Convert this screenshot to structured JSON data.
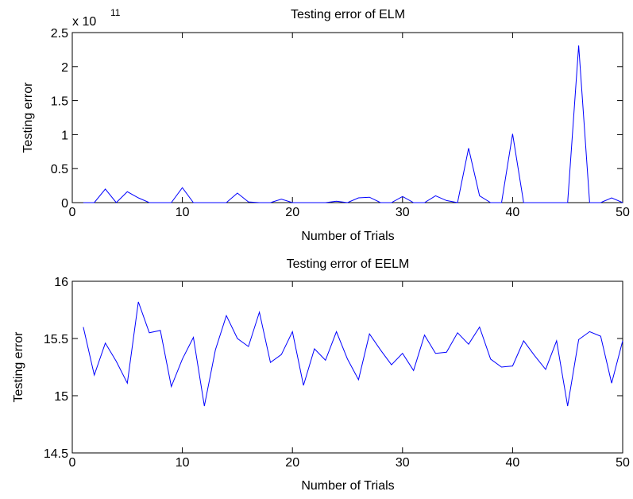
{
  "chart_data": [
    {
      "type": "line",
      "title": "Testing error of ELM",
      "xlabel": "Number of Trials",
      "ylabel": "Testing error",
      "y_exponent_base": "x 10",
      "y_exponent_power": "11",
      "xlim": [
        0,
        50
      ],
      "ylim": [
        0,
        2.5
      ],
      "xticks": [
        0,
        10,
        20,
        30,
        40,
        50
      ],
      "yticks": [
        0,
        0.5,
        1,
        1.5,
        2,
        2.5
      ],
      "ytick_labels": [
        "0",
        "0.5",
        "1",
        "1.5",
        "2",
        "2.5"
      ],
      "grid": false,
      "series": [
        {
          "color": "#0000ff",
          "x": [
            1,
            2,
            3,
            4,
            5,
            6,
            7,
            8,
            9,
            10,
            11,
            12,
            13,
            14,
            15,
            16,
            17,
            18,
            19,
            20,
            21,
            22,
            23,
            24,
            25,
            26,
            27,
            28,
            29,
            30,
            31,
            32,
            33,
            34,
            35,
            36,
            37,
            38,
            39,
            40,
            41,
            42,
            43,
            44,
            45,
            46,
            47,
            48,
            49,
            50
          ],
          "values": [
            0,
            0,
            0.2,
            0,
            0.16,
            0.07,
            0,
            0,
            0,
            0.22,
            0,
            0,
            0,
            0,
            0.14,
            0.01,
            0,
            0,
            0.05,
            0,
            0,
            0,
            0,
            0.02,
            0,
            0.07,
            0.08,
            0,
            0,
            0.09,
            0,
            0,
            0.1,
            0.03,
            0,
            0.8,
            0.1,
            0,
            0,
            1.01,
            0,
            0,
            0,
            0,
            0,
            2.31,
            0,
            0,
            0.07,
            0
          ]
        }
      ]
    },
    {
      "type": "line",
      "title": "Testing error of EELM",
      "xlabel": "Number of Trials",
      "ylabel": "Testing error",
      "xlim": [
        0,
        50
      ],
      "ylim": [
        14.5,
        16
      ],
      "xticks": [
        0,
        10,
        20,
        30,
        40,
        50
      ],
      "yticks": [
        14.5,
        15,
        15.5,
        16
      ],
      "ytick_labels": [
        "14.5",
        "15",
        "15.5",
        "16"
      ],
      "grid": false,
      "series": [
        {
          "color": "#0000ff",
          "x": [
            1,
            2,
            3,
            4,
            5,
            6,
            7,
            8,
            9,
            10,
            11,
            12,
            13,
            14,
            15,
            16,
            17,
            18,
            19,
            20,
            21,
            22,
            23,
            24,
            25,
            26,
            27,
            28,
            29,
            30,
            31,
            32,
            33,
            34,
            35,
            36,
            37,
            38,
            39,
            40,
            41,
            42,
            43,
            44,
            45,
            46,
            47,
            48,
            49,
            50
          ],
          "values": [
            15.6,
            15.18,
            15.46,
            15.3,
            15.11,
            15.82,
            15.55,
            15.57,
            15.08,
            15.32,
            15.51,
            14.91,
            15.4,
            15.7,
            15.5,
            15.43,
            15.73,
            15.29,
            15.36,
            15.56,
            15.09,
            15.41,
            15.31,
            15.56,
            15.32,
            15.14,
            15.54,
            15.4,
            15.27,
            15.37,
            15.22,
            15.53,
            15.37,
            15.38,
            15.55,
            15.45,
            15.6,
            15.32,
            15.25,
            15.26,
            15.48,
            15.35,
            15.23,
            15.48,
            14.91,
            15.49,
            15.56,
            15.52,
            15.11,
            15.48
          ]
        }
      ]
    }
  ]
}
